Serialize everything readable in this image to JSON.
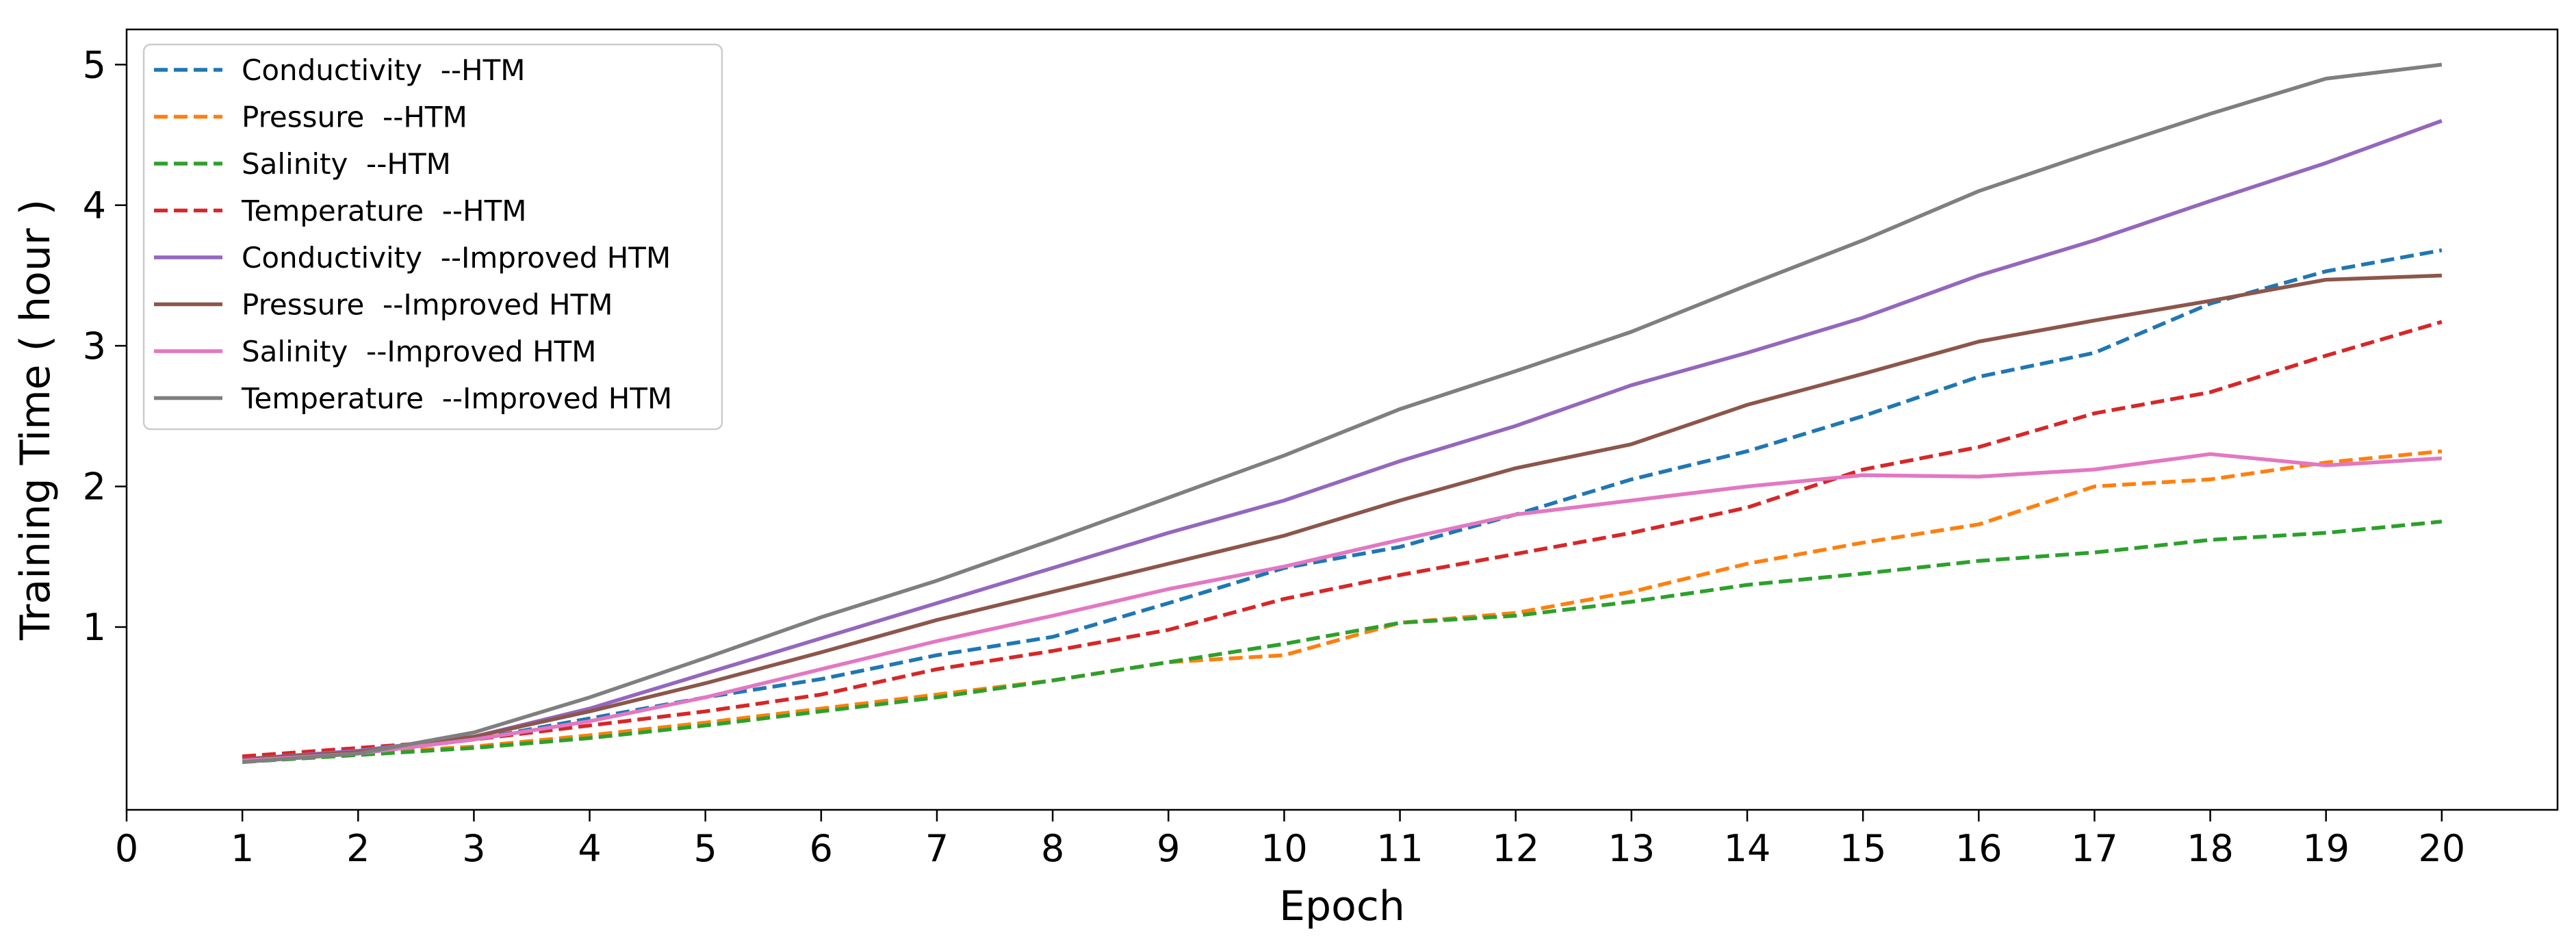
{
  "chart_data": {
    "type": "line",
    "title": "",
    "xlabel": "Epoch",
    "ylabel": "Training Time ( hour )",
    "xlim": [
      0,
      21
    ],
    "ylim": [
      -0.3,
      5.25
    ],
    "xticks": [
      0,
      1,
      2,
      3,
      4,
      5,
      6,
      7,
      8,
      9,
      10,
      11,
      12,
      13,
      14,
      15,
      16,
      17,
      18,
      19,
      20
    ],
    "yticks": [
      1,
      2,
      3,
      4,
      5
    ],
    "grid": false,
    "legend_position": "top-left",
    "x": [
      1,
      2,
      3,
      4,
      5,
      6,
      7,
      8,
      9,
      10,
      11,
      12,
      13,
      14,
      15,
      16,
      17,
      18,
      19,
      20
    ],
    "series": [
      {
        "name": "Conductivity  --HTM",
        "color": "#1f77b4",
        "dash": "dashed",
        "values": [
          0.05,
          0.1,
          0.2,
          0.35,
          0.5,
          0.63,
          0.8,
          0.93,
          1.17,
          1.42,
          1.57,
          1.8,
          2.05,
          2.25,
          2.5,
          2.78,
          2.95,
          3.3,
          3.53,
          3.68
        ]
      },
      {
        "name": "Pressure  --HTM",
        "color": "#ff7f0e",
        "dash": "dashed",
        "values": [
          0.05,
          0.1,
          0.15,
          0.23,
          0.32,
          0.42,
          0.52,
          0.62,
          0.75,
          0.8,
          1.03,
          1.1,
          1.25,
          1.45,
          1.6,
          1.73,
          2.0,
          2.05,
          2.17,
          2.25
        ]
      },
      {
        "name": "Salinity  --HTM",
        "color": "#2ca02c",
        "dash": "dashed",
        "values": [
          0.04,
          0.09,
          0.14,
          0.21,
          0.3,
          0.4,
          0.5,
          0.62,
          0.75,
          0.88,
          1.03,
          1.08,
          1.18,
          1.3,
          1.38,
          1.47,
          1.53,
          1.62,
          1.67,
          1.75
        ]
      },
      {
        "name": "Temperature  --HTM",
        "color": "#d62728",
        "dash": "dashed",
        "values": [
          0.08,
          0.14,
          0.2,
          0.3,
          0.4,
          0.52,
          0.7,
          0.83,
          0.98,
          1.2,
          1.37,
          1.52,
          1.67,
          1.85,
          2.12,
          2.28,
          2.52,
          2.67,
          2.93,
          3.17
        ]
      },
      {
        "name": "Conductivity  --Improved HTM",
        "color": "#9467bd",
        "dash": "solid",
        "values": [
          0.06,
          0.12,
          0.22,
          0.42,
          0.67,
          0.92,
          1.17,
          1.42,
          1.67,
          1.9,
          2.18,
          2.43,
          2.72,
          2.95,
          3.2,
          3.5,
          3.75,
          4.03,
          4.3,
          4.6
        ]
      },
      {
        "name": "Pressure  --Improved HTM",
        "color": "#8c564b",
        "dash": "solid",
        "values": [
          0.06,
          0.11,
          0.22,
          0.4,
          0.6,
          0.82,
          1.05,
          1.25,
          1.45,
          1.65,
          1.9,
          2.13,
          2.3,
          2.58,
          2.8,
          3.03,
          3.18,
          3.32,
          3.47,
          3.5
        ]
      },
      {
        "name": "Salinity  --Improved HTM",
        "color": "#e377c2",
        "dash": "solid",
        "values": [
          0.05,
          0.1,
          0.2,
          0.33,
          0.5,
          0.7,
          0.9,
          1.08,
          1.27,
          1.43,
          1.62,
          1.8,
          1.9,
          2.0,
          2.08,
          2.07,
          2.12,
          2.23,
          2.15,
          2.2
        ]
      },
      {
        "name": "Temperature  --Improved HTM",
        "color": "#7f7f7f",
        "dash": "solid",
        "values": [
          0.04,
          0.1,
          0.25,
          0.5,
          0.78,
          1.07,
          1.33,
          1.62,
          1.92,
          2.22,
          2.55,
          2.82,
          3.1,
          3.43,
          3.75,
          4.1,
          4.38,
          4.65,
          4.9,
          5.0
        ]
      }
    ]
  }
}
